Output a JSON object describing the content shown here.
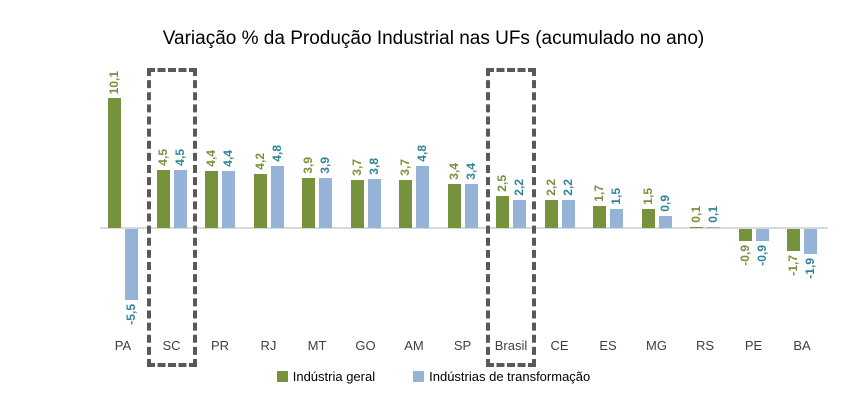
{
  "chart_data": {
    "type": "bar",
    "title": "Variação % da Produção Industrial nas UFs (acumulado no ano)",
    "categories": [
      "PA",
      "SC",
      "PR",
      "RJ",
      "MT",
      "GO",
      "AM",
      "SP",
      "Brasil",
      "CE",
      "ES",
      "MG",
      "RS",
      "PE",
      "BA"
    ],
    "series": [
      {
        "name": "Indústria geral",
        "color": "#76923C",
        "label_color": "#76923C",
        "values": [
          10.1,
          4.5,
          4.4,
          4.2,
          3.9,
          3.7,
          3.7,
          3.4,
          2.5,
          2.2,
          1.7,
          1.5,
          0.1,
          -0.9,
          -1.7
        ],
        "value_labels": [
          "10,1",
          "4,5",
          "4,4",
          "4,2",
          "3,9",
          "3,7",
          "3,7",
          "3,4",
          "2,5",
          "2,2",
          "1,7",
          "1,5",
          "0,1",
          "-0,9",
          "-1,7"
        ]
      },
      {
        "name": "Indústrias de transformação",
        "color": "#95B3D7",
        "label_color": "#31849B",
        "values": [
          -5.5,
          4.5,
          4.4,
          4.8,
          3.9,
          3.8,
          4.8,
          3.4,
          2.2,
          2.2,
          1.5,
          0.9,
          0.1,
          -0.9,
          -1.9
        ],
        "value_labels": [
          "-5,5",
          "4,5",
          "4,4",
          "4,8",
          "3,9",
          "3,8",
          "4,8",
          "3,4",
          "2,2",
          "2,2",
          "1,5",
          "0,9",
          "0,1",
          "-0,9",
          "-1,9"
        ]
      }
    ],
    "highlighted_categories": [
      "SC",
      "Brasil"
    ],
    "highlight_box_color": "#595959",
    "axis": {
      "zero_line_color": "#D9D9D9",
      "ylim": [
        -7,
        12
      ],
      "gridlines": false,
      "y_axis_visible": false
    },
    "legend_position": "bottom"
  }
}
